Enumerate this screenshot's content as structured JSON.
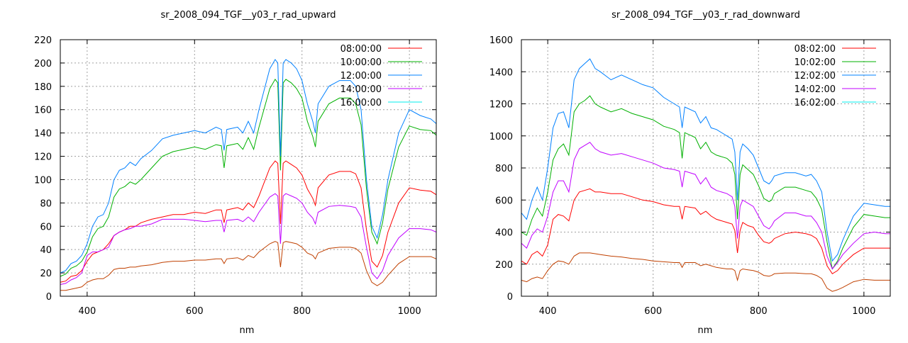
{
  "chart_data": [
    {
      "type": "line",
      "title": "sr_2008_094_TGF__y03_r_rad_upward",
      "xlabel": "nm",
      "ylabel": "",
      "xlim": [
        350,
        1050
      ],
      "ylim": [
        0,
        220
      ],
      "xticks": [
        400,
        600,
        800,
        1000
      ],
      "yticks": [
        0,
        20,
        40,
        60,
        80,
        100,
        120,
        140,
        160,
        180,
        200,
        220
      ],
      "grid": true,
      "legend_position": "top-right",
      "x": [
        350,
        360,
        370,
        380,
        390,
        400,
        410,
        420,
        430,
        440,
        450,
        460,
        470,
        480,
        490,
        500,
        520,
        540,
        560,
        580,
        600,
        620,
        640,
        650,
        655,
        660,
        680,
        690,
        700,
        710,
        720,
        740,
        750,
        755,
        760,
        765,
        770,
        780,
        790,
        800,
        810,
        820,
        825,
        830,
        850,
        870,
        890,
        900,
        910,
        920,
        930,
        940,
        950,
        960,
        980,
        1000,
        1020,
        1040,
        1050
      ],
      "series": [
        {
          "name": "08:00:00",
          "color": "#ff0000",
          "legend_color": "#ff0000",
          "values": [
            12,
            13,
            17,
            18,
            22,
            30,
            36,
            38,
            40,
            45,
            52,
            55,
            57,
            60,
            60,
            63,
            66,
            68,
            70,
            70,
            72,
            71,
            74,
            74,
            63,
            74,
            76,
            74,
            80,
            76,
            86,
            110,
            116,
            114,
            62,
            114,
            116,
            113,
            110,
            104,
            92,
            84,
            78,
            93,
            104,
            107,
            107,
            105,
            93,
            57,
            30,
            25,
            35,
            55,
            80,
            93,
            91,
            90,
            87
          ]
        },
        {
          "name": "10:00:00",
          "color": "#00b000",
          "legend_color": "#00b000",
          "values": [
            17,
            19,
            24,
            26,
            30,
            38,
            51,
            58,
            60,
            68,
            85,
            92,
            94,
            98,
            96,
            100,
            110,
            120,
            124,
            126,
            128,
            126,
            130,
            129,
            110,
            129,
            131,
            126,
            136,
            126,
            145,
            178,
            186,
            183,
            108,
            183,
            186,
            183,
            178,
            170,
            150,
            137,
            128,
            150,
            165,
            170,
            170,
            165,
            147,
            92,
            55,
            45,
            63,
            92,
            128,
            146,
            143,
            142,
            138
          ]
        },
        {
          "name": "12:00:00",
          "color": "#0080ff",
          "legend_color": "#0080ff",
          "values": [
            20,
            22,
            28,
            30,
            35,
            45,
            60,
            68,
            70,
            80,
            100,
            108,
            110,
            115,
            112,
            118,
            125,
            135,
            138,
            140,
            142,
            140,
            145,
            143,
            125,
            143,
            145,
            140,
            150,
            140,
            160,
            195,
            203,
            200,
            120,
            200,
            203,
            200,
            195,
            185,
            165,
            150,
            140,
            165,
            180,
            185,
            185,
            180,
            160,
            100,
            60,
            50,
            70,
            100,
            140,
            160,
            155,
            152,
            148
          ]
        },
        {
          "name": "14:00:00",
          "color": "#c000ff",
          "legend_color": "#c000ff",
          "values": [
            10,
            11,
            14,
            16,
            20,
            35,
            38,
            38,
            40,
            42,
            52,
            55,
            57,
            58,
            60,
            60,
            62,
            66,
            66,
            66,
            65,
            64,
            65,
            65,
            55,
            65,
            66,
            64,
            68,
            64,
            72,
            85,
            88,
            86,
            45,
            86,
            88,
            86,
            84,
            80,
            72,
            67,
            62,
            72,
            77,
            78,
            77,
            76,
            68,
            42,
            20,
            15,
            22,
            35,
            50,
            58,
            58,
            57,
            55
          ]
        },
        {
          "name": "16:00:00",
          "color": "#c04000",
          "legend_color": "#00eeee",
          "values": [
            5,
            5,
            6,
            7,
            8,
            12,
            14,
            15,
            15,
            18,
            23,
            24,
            24,
            25,
            25,
            26,
            27,
            29,
            30,
            30,
            31,
            31,
            32,
            32,
            28,
            32,
            33,
            31,
            35,
            33,
            38,
            45,
            47,
            46,
            25,
            46,
            47,
            46,
            45,
            42,
            37,
            35,
            32,
            37,
            41,
            42,
            42,
            41,
            37,
            22,
            12,
            9,
            12,
            18,
            28,
            34,
            34,
            34,
            32
          ]
        }
      ]
    },
    {
      "type": "line",
      "title": "sr_2008_094_TGF__y03_r_rad_downward",
      "xlabel": "nm",
      "ylabel": "",
      "xlim": [
        350,
        1050
      ],
      "ylim": [
        0,
        1600
      ],
      "xticks": [
        400,
        600,
        800,
        1000
      ],
      "yticks": [
        0,
        200,
        400,
        600,
        800,
        1000,
        1200,
        1400,
        1600
      ],
      "grid": true,
      "legend_position": "top-right",
      "x": [
        350,
        360,
        370,
        380,
        390,
        400,
        410,
        420,
        430,
        440,
        450,
        460,
        470,
        480,
        490,
        500,
        520,
        540,
        560,
        580,
        600,
        620,
        640,
        650,
        655,
        660,
        680,
        690,
        700,
        710,
        720,
        740,
        750,
        755,
        760,
        765,
        770,
        780,
        790,
        800,
        810,
        820,
        825,
        830,
        850,
        870,
        890,
        900,
        910,
        920,
        930,
        940,
        950,
        960,
        980,
        1000,
        1020,
        1040,
        1050
      ],
      "series": [
        {
          "name": "08:02:00",
          "color": "#ff0000",
          "legend_color": "#ff0000",
          "values": [
            220,
            200,
            260,
            280,
            250,
            320,
            480,
            510,
            500,
            470,
            600,
            650,
            660,
            670,
            650,
            650,
            640,
            640,
            620,
            600,
            590,
            570,
            560,
            560,
            480,
            560,
            550,
            510,
            530,
            500,
            480,
            460,
            450,
            410,
            270,
            410,
            460,
            440,
            430,
            380,
            340,
            330,
            340,
            360,
            390,
            400,
            390,
            380,
            360,
            300,
            190,
            140,
            160,
            200,
            260,
            300,
            300,
            300,
            300
          ]
        },
        {
          "name": "10:02:00",
          "color": "#00b000",
          "legend_color": "#00b000",
          "values": [
            400,
            380,
            480,
            550,
            500,
            650,
            850,
            920,
            950,
            880,
            1150,
            1200,
            1220,
            1250,
            1200,
            1180,
            1150,
            1170,
            1140,
            1120,
            1100,
            1060,
            1040,
            1020,
            860,
            1020,
            990,
            920,
            960,
            900,
            880,
            860,
            830,
            760,
            480,
            760,
            820,
            790,
            760,
            690,
            610,
            590,
            600,
            640,
            680,
            680,
            660,
            650,
            610,
            540,
            340,
            170,
            220,
            300,
            430,
            510,
            500,
            490,
            490
          ]
        },
        {
          "name": "12:02:00",
          "color": "#0080ff",
          "legend_color": "#0080ff",
          "values": [
            520,
            480,
            600,
            680,
            600,
            800,
            1050,
            1140,
            1150,
            1050,
            1350,
            1420,
            1450,
            1480,
            1420,
            1400,
            1350,
            1380,
            1350,
            1320,
            1300,
            1240,
            1200,
            1180,
            1050,
            1180,
            1150,
            1080,
            1120,
            1050,
            1040,
            1000,
            980,
            900,
            600,
            900,
            950,
            920,
            880,
            800,
            720,
            700,
            720,
            750,
            770,
            770,
            750,
            760,
            720,
            650,
            400,
            220,
            260,
            350,
            500,
            580,
            570,
            560,
            560
          ]
        },
        {
          "name": "14:02:00",
          "color": "#c000ff",
          "legend_color": "#c000ff",
          "values": [
            330,
            300,
            380,
            420,
            400,
            500,
            650,
            720,
            720,
            650,
            850,
            920,
            940,
            960,
            920,
            900,
            880,
            890,
            870,
            850,
            830,
            800,
            790,
            780,
            680,
            780,
            760,
            700,
            740,
            680,
            660,
            640,
            620,
            560,
            360,
            560,
            600,
            580,
            560,
            500,
            440,
            420,
            440,
            470,
            520,
            520,
            500,
            500,
            460,
            400,
            250,
            170,
            210,
            260,
            330,
            390,
            400,
            390,
            390
          ]
        },
        {
          "name": "16:02:00",
          "color": "#c04000",
          "legend_color": "#00eeee",
          "values": [
            100,
            90,
            110,
            120,
            110,
            160,
            200,
            220,
            215,
            200,
            250,
            270,
            270,
            270,
            265,
            260,
            250,
            245,
            235,
            230,
            220,
            215,
            210,
            210,
            180,
            210,
            210,
            190,
            200,
            190,
            180,
            170,
            170,
            160,
            100,
            160,
            170,
            165,
            160,
            150,
            130,
            125,
            130,
            140,
            145,
            145,
            140,
            140,
            130,
            110,
            50,
            30,
            40,
            55,
            90,
            105,
            100,
            100,
            100
          ]
        }
      ]
    }
  ]
}
